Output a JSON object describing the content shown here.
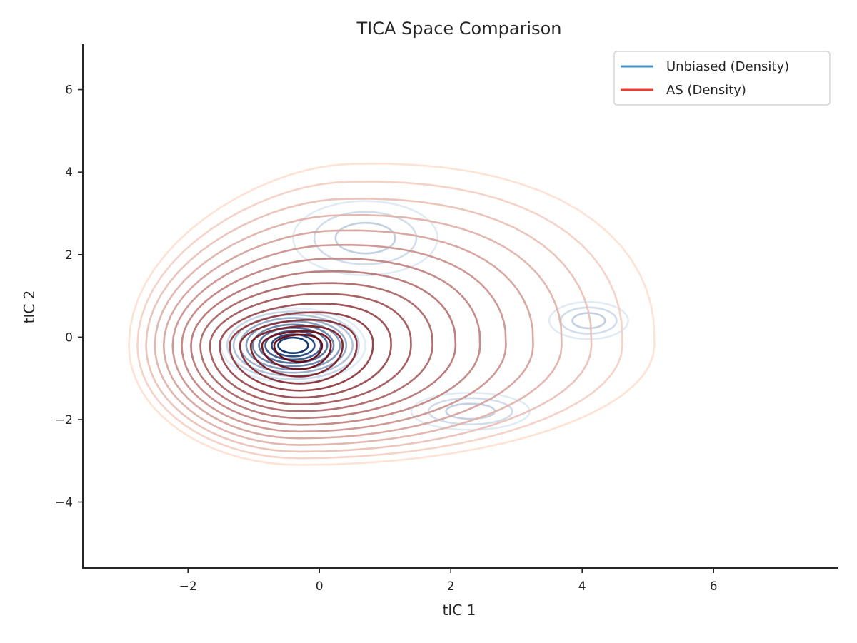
{
  "chart_data": {
    "type": "contour",
    "title": "TICA Space Comparison",
    "xlabel": "tIC 1",
    "ylabel": "tIC 2",
    "xlim": [
      -3.6,
      7.9
    ],
    "ylim": [
      -5.6,
      7.1
    ],
    "xticks": [
      -2,
      0,
      2,
      4,
      6
    ],
    "yticks": [
      -4,
      -2,
      0,
      2,
      4,
      6
    ],
    "grid": false,
    "legend_position": "top-right",
    "series": [
      {
        "name": "Unbiased (Density)",
        "kind": "kde-contours",
        "legend_color": "#4292c6",
        "color_light": "#deebf7",
        "color_dark": "#08306b",
        "levels": 10,
        "modes": [
          {
            "center": [
              -0.4,
              -0.2
            ],
            "rx": 1.1,
            "ry": 0.9
          },
          {
            "center": [
              0.7,
              2.4
            ],
            "rx": 1.1,
            "ry": 0.9
          },
          {
            "center": [
              4.1,
              0.4
            ],
            "rx": 0.6,
            "ry": 0.45
          },
          {
            "center": [
              2.3,
              -1.8
            ],
            "rx": 0.9,
            "ry": 0.45
          }
        ]
      },
      {
        "name": "AS (Density)",
        "kind": "kde-contours",
        "legend_color": "#ef3b2c",
        "color_light": "#fee0d2",
        "color_dark": "#67000d",
        "levels": 16,
        "center": [
          -0.3,
          -0.2
        ],
        "outer_extent": {
          "x": [
            -2.9,
            5.1
          ],
          "y": [
            -3.1,
            4.2
          ]
        }
      }
    ],
    "tick_labels_x": [
      "−2",
      "0",
      "2",
      "4",
      "6"
    ],
    "tick_labels_y": [
      "−4",
      "−2",
      "0",
      "2",
      "4",
      "6"
    ]
  }
}
